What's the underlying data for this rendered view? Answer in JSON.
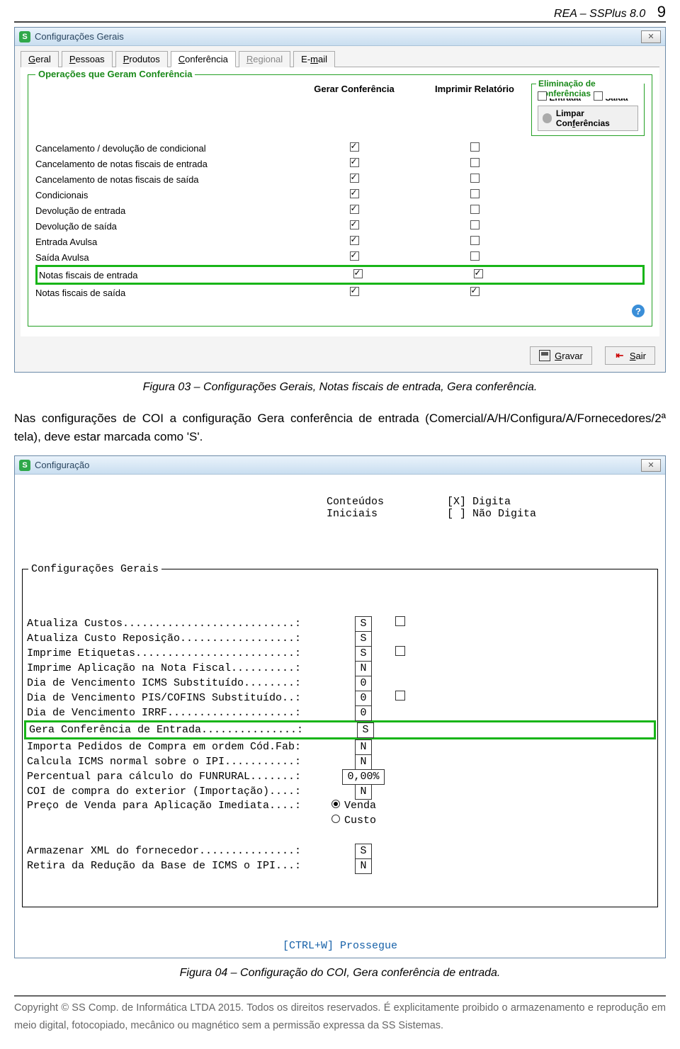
{
  "header": {
    "doc_title": "REA – SSPlus 8.0",
    "page_number": "9"
  },
  "win1": {
    "title": "Configurações Gerais",
    "tabs": [
      "Geral",
      "Pessoas",
      "Produtos",
      "Conferência",
      "Regional",
      "E-mail"
    ],
    "active_tab_index": 3,
    "disabled_tab_index": 4,
    "tab_underline_chars": [
      "G",
      "P",
      "P",
      "C",
      "R",
      "m"
    ],
    "fieldset_title": "Operações que Geram Conferência",
    "col_gc": "Gerar Conferência",
    "col_ir": "Imprimir Relatório",
    "rows": [
      {
        "label": "Cancelamento / devolução de condicional",
        "gc": true,
        "ir": false
      },
      {
        "label": "Cancelamento de notas fiscais de entrada",
        "gc": true,
        "ir": false
      },
      {
        "label": "Cancelamento de notas fiscais de saída",
        "gc": true,
        "ir": false
      },
      {
        "label": "Condicionais",
        "gc": true,
        "ir": false
      },
      {
        "label": "Devolução de entrada",
        "gc": true,
        "ir": false
      },
      {
        "label": "Devolução de saída",
        "gc": true,
        "ir": false
      },
      {
        "label": "Entrada Avulsa",
        "gc": true,
        "ir": false
      },
      {
        "label": "Saída Avulsa",
        "gc": true,
        "ir": false
      },
      {
        "label": "Notas fiscais de entrada",
        "gc": true,
        "ir": true,
        "highlight": true
      },
      {
        "label": "Notas fiscais de saída",
        "gc": true,
        "ir": true
      }
    ],
    "sidebox": {
      "title": "Eliminação de conferências",
      "entrada_label": "Entrada",
      "saida_label": "Saída",
      "entrada": false,
      "saida": false,
      "btn": "Limpar Conferências",
      "btn_u": "f"
    },
    "gravar": "Gravar",
    "gravar_u": "G",
    "sair": "Sair",
    "sair_u": "S"
  },
  "caption1": "Figura 03 – Configurações Gerais, Notas fiscais de entrada, Gera conferência.",
  "para1": "Nas configurações de COI a configuração Gera conferência de entrada (Comercial/A/H/Configura/A/Fornecedores/2ª tela), deve estar marcada como 'S'.",
  "win2": {
    "title": "Configuração",
    "head_conteudos_l1": "Conteúdos",
    "head_conteudos_l2": "Iniciais",
    "head_digita": "[X] Digita",
    "head_nao_digita": "[ ] Não Digita",
    "fieldset_title": "Configurações Gerais",
    "lines": [
      {
        "k": "Atualiza Custos...........................:",
        "v": "S",
        "d": "sq"
      },
      {
        "k": "Atualiza Custo Reposição..................:",
        "v": "S",
        "d": ""
      },
      {
        "k": "Imprime Etiquetas.........................:",
        "v": "S",
        "d": "sq"
      },
      {
        "k": "Imprime Aplicação na Nota Fiscal..........:",
        "v": "N",
        "d": ""
      },
      {
        "k": "Dia de Vencimento ICMS Substituído........:",
        "v": "0",
        "d": ""
      },
      {
        "k": "Dia de Vencimento PIS/COFINS Substituído..:",
        "v": "0",
        "d": "sq"
      },
      {
        "k": "Dia de Vencimento IRRF....................:",
        "v": "0",
        "d": ""
      },
      {
        "k": "Gera Conferência de Entrada...............:",
        "v": "S",
        "d": "",
        "highlight": true
      },
      {
        "k": "Importa Pedidos de Compra em ordem Cód.Fab:",
        "v": "N",
        "d": ""
      },
      {
        "k": "Calcula ICMS normal sobre o IPI...........:",
        "v": "N",
        "d": ""
      },
      {
        "k": "Percentual para cálculo do FUNRURAL.......:",
        "v": "0,00%",
        "d": ""
      },
      {
        "k": "COI de compra do exterior (Importação)....:",
        "v": "N",
        "d": ""
      },
      {
        "k": "Preço de Venda para Aplicação Imediata....:",
        "radio": true,
        "r1": "Venda",
        "r2": "Custo",
        "sel": 0
      },
      {
        "k": "",
        "blank": true
      },
      {
        "k": "Armazenar XML do fornecedor...............:",
        "v": "S",
        "d": ""
      },
      {
        "k": "Retira da Redução da Base de ICMS o IPI...:",
        "v": "N",
        "d": ""
      }
    ],
    "hint": "[CTRL+W]  Prossegue"
  },
  "caption2": "Figura 04 – Configuração do COI, Gera conferência de entrada.",
  "footer": "Copyright © SS Comp. de Informática LTDA 2015. Todos os direitos reservados. É explicitamente proibido o armazenamento e reprodução em meio digital, fotocopiado, mecânico ou magnético sem a permissão expressa da SS Sistemas.",
  "colors": {
    "highlight": "#18b518",
    "fieldset": "#24a024",
    "legend": "#1a8a1a",
    "hint": "#1560a8"
  }
}
